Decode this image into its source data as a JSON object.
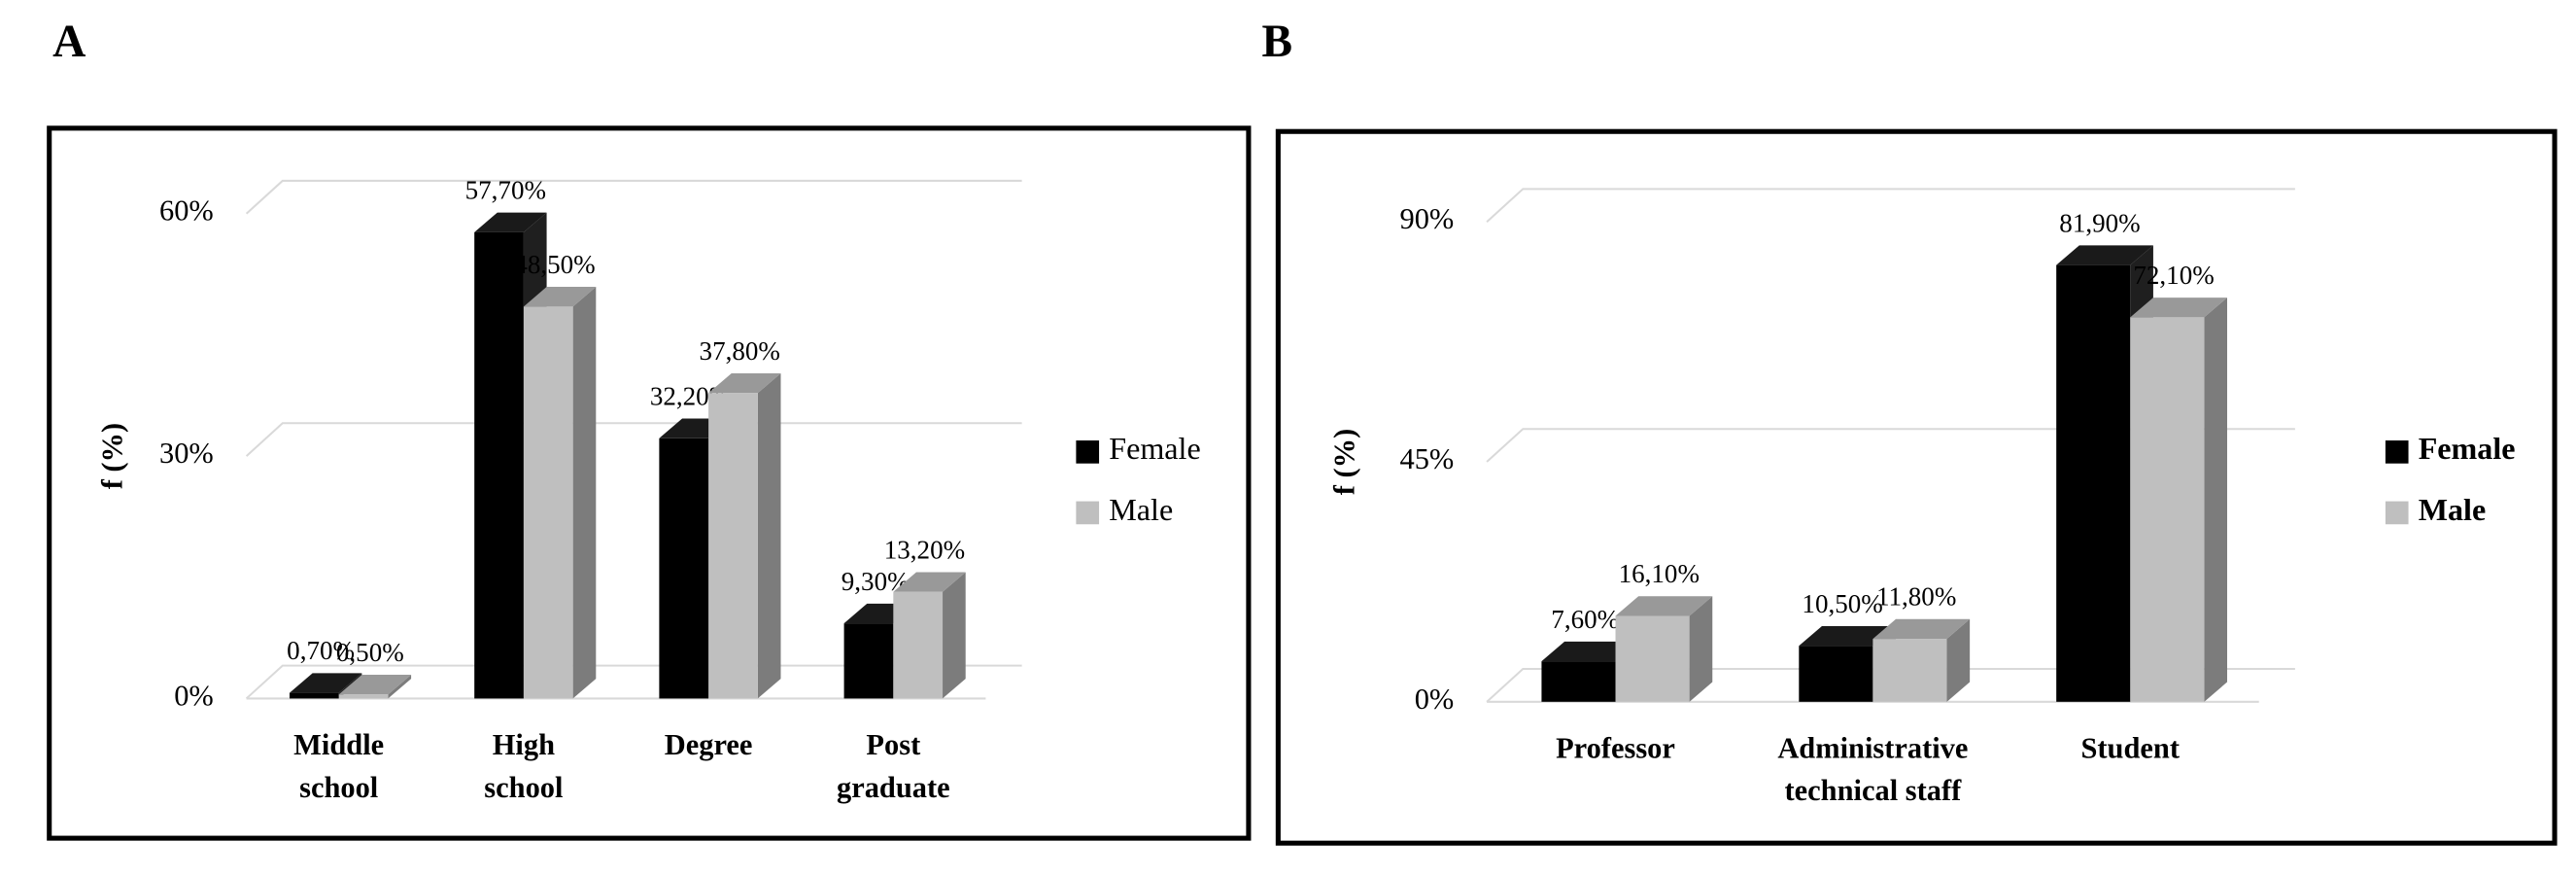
{
  "chart_data": [
    {
      "type": "bar",
      "panel_label": "A",
      "y_label": "f (%)",
      "categories": [
        "Middle\nschool",
        "High\nschool",
        "Degree",
        "Post\ngraduate"
      ],
      "series": [
        {
          "name": "Female",
          "color": "#000000",
          "values": [
            0.7,
            57.7,
            32.2,
            9.3
          ],
          "value_labels": [
            "0,70%",
            "57,70%",
            "32,20%",
            "9,30%"
          ]
        },
        {
          "name": "Male",
          "color": "#bfbfbf",
          "values": [
            0.5,
            48.5,
            37.8,
            13.2
          ],
          "value_labels": [
            "0,50%",
            "48,50%",
            "37,80%",
            "13,20%"
          ]
        }
      ],
      "ylim": [
        0,
        60
      ],
      "yticks": [
        {
          "value": 0,
          "label": "0%"
        },
        {
          "value": 30,
          "label": "30%"
        },
        {
          "value": 60,
          "label": "60%"
        }
      ],
      "grid": true,
      "legend": "right"
    },
    {
      "type": "bar",
      "panel_label": "B",
      "y_label": "f (%)",
      "categories": [
        "Professor",
        "Administrative\ntechnical staff",
        "Student"
      ],
      "series": [
        {
          "name": "Female",
          "color": "#000000",
          "values": [
            7.6,
            10.5,
            81.9
          ],
          "value_labels": [
            "7,60%",
            "10,50%",
            "81,90%"
          ]
        },
        {
          "name": "Male",
          "color": "#bfbfbf",
          "values": [
            16.1,
            11.8,
            72.1
          ],
          "value_labels": [
            "16,10%",
            "11,80%",
            "72,10%"
          ]
        }
      ],
      "ylim": [
        0,
        90
      ],
      "yticks": [
        {
          "value": 0,
          "label": "0%"
        },
        {
          "value": 45,
          "label": "45%"
        },
        {
          "value": 90,
          "label": "90%"
        }
      ],
      "grid": true,
      "legend": "right"
    }
  ]
}
